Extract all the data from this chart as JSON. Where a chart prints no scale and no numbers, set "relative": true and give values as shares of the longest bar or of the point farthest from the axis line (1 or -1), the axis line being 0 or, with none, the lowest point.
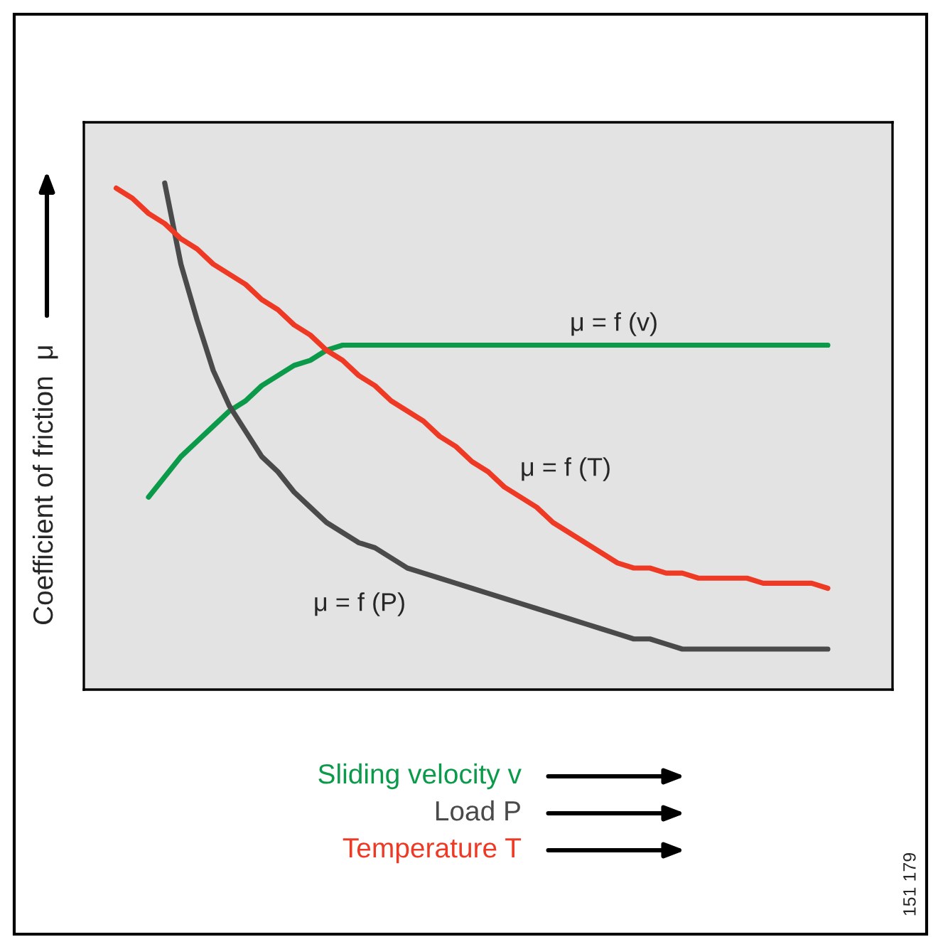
{
  "chart_data": {
    "type": "line",
    "relative": true,
    "ylabel": "Coefficient of friction  μ",
    "tick_labels": false,
    "legend": "bottom",
    "categories": [
      null,
      null,
      null,
      null,
      null,
      null,
      null,
      null,
      null,
      null,
      null,
      null,
      null,
      null,
      null,
      null,
      null,
      null,
      null,
      null,
      null,
      null,
      null,
      null,
      null,
      null,
      null,
      null,
      null,
      null,
      null,
      null,
      null,
      null,
      null,
      null,
      null,
      null,
      null,
      null,
      null,
      null,
      null,
      null,
      null,
      null,
      null,
      null,
      null,
      null,
      null
    ],
    "series": [
      {
        "name": "Sliding velocity v",
        "color": "#0a9a4a",
        "values": [
          null,
          null,
          null,
          null,
          0.38,
          0.42,
          0.46,
          0.49,
          0.52,
          0.55,
          0.57,
          0.6,
          0.62,
          0.64,
          0.65,
          0.67,
          0.68,
          0.68,
          0.68,
          0.68,
          0.68,
          0.68,
          0.68,
          0.68,
          0.68,
          0.68,
          0.68,
          0.68,
          0.68,
          0.68,
          0.68,
          0.68,
          0.68,
          0.68,
          0.68,
          0.68,
          0.68,
          0.68,
          0.68,
          0.68,
          0.68,
          0.68,
          0.68,
          0.68,
          0.68,
          0.68,
          0.68,
          null,
          null,
          null,
          null
        ]
      },
      {
        "name": "Load P",
        "color": "#4a4a4a",
        "values": [
          null,
          null,
          null,
          null,
          null,
          1.0,
          0.84,
          0.73,
          0.63,
          0.56,
          0.51,
          0.46,
          0.43,
          0.39,
          0.36,
          0.33,
          0.31,
          0.29,
          0.28,
          0.26,
          0.24,
          0.23,
          0.22,
          0.21,
          0.2,
          0.19,
          0.18,
          0.17,
          0.16,
          0.15,
          0.14,
          0.13,
          0.12,
          0.11,
          0.1,
          0.1,
          0.09,
          0.08,
          0.08,
          0.08,
          0.08,
          0.08,
          0.08,
          0.08,
          0.08,
          0.08,
          0.08,
          null,
          null,
          null,
          null
        ]
      },
      {
        "name": "Temperature T",
        "color": "#ee3a24",
        "values": [
          null,
          null,
          0.99,
          0.97,
          0.94,
          0.92,
          0.89,
          0.87,
          0.84,
          0.82,
          0.8,
          0.77,
          0.75,
          0.72,
          0.7,
          0.67,
          0.65,
          0.62,
          0.6,
          0.57,
          0.55,
          0.53,
          0.5,
          0.48,
          0.45,
          0.43,
          0.4,
          0.38,
          0.36,
          0.33,
          0.31,
          0.29,
          0.27,
          0.25,
          0.24,
          0.24,
          0.23,
          0.23,
          0.22,
          0.22,
          0.22,
          0.22,
          0.21,
          0.21,
          0.21,
          0.21,
          0.2,
          null,
          null,
          null,
          null
        ]
      }
    ],
    "annotations": [
      "μ = f (v)",
      "μ = f (P)",
      "μ = f (T)",
      "151 179"
    ]
  }
}
